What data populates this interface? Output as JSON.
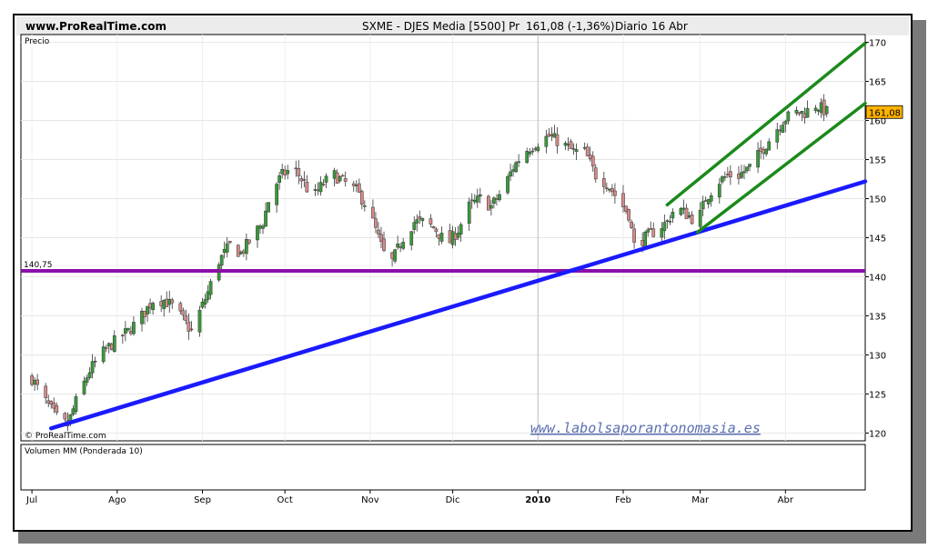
{
  "header": {
    "site": "www.ProRealTime.com",
    "title": "SXME - DJES Media [5500] Pr",
    "price_change": "161,08 (-1,36%)",
    "period": "Diario",
    "date": "16 Abr"
  },
  "panels": {
    "price_label": "Precio",
    "volume_label": "Volumen MM (Ponderada 10)",
    "copyright": "© ProRealTime.com",
    "watermark": "www.labolsaporantonomasia.es"
  },
  "colors": {
    "bull": "#3a9a3a",
    "bear": "#d58a8a",
    "support_line": "#1a1aff",
    "horizontal_line": "#8a10a8",
    "channel": "#1a8a1a",
    "last_price_bg": "#ffb200"
  },
  "chart_data": {
    "type": "candlestick",
    "months": [
      "Jul",
      "Ago",
      "Sep",
      "Oct",
      "Nov",
      "Dic",
      "2010",
      "Feb",
      "Mar",
      "Abr"
    ],
    "ylim": [
      119,
      171
    ],
    "yticks": [
      120,
      125,
      130,
      135,
      140,
      145,
      150,
      155,
      160,
      165,
      170
    ],
    "last_price": "161,08",
    "horizontal_level": {
      "value": 140.75,
      "label": "140,75"
    },
    "trend_lines": [
      {
        "name": "support",
        "from": {
          "x": "2009-07-08",
          "y": 120.6
        },
        "to": {
          "x": "2010-04-30",
          "y": 152.2
        }
      },
      {
        "name": "channel-upper",
        "from": {
          "x": "2010-02-17",
          "y": 149.2
        },
        "to": {
          "x": "2010-04-30",
          "y": 169.9
        }
      },
      {
        "name": "channel-lower",
        "from": {
          "x": "2010-02-28",
          "y": 145.7
        },
        "to": {
          "x": "2010-04-30",
          "y": 162.2
        }
      }
    ],
    "closes": [
      [
        "2009-07-01",
        127
      ],
      [
        "2009-07-06",
        124
      ],
      [
        "2009-07-10",
        122
      ],
      [
        "2009-07-14",
        121
      ],
      [
        "2009-07-17",
        124
      ],
      [
        "2009-07-22",
        128
      ],
      [
        "2009-07-26",
        130
      ],
      [
        "2009-08-01",
        132
      ],
      [
        "2009-08-05",
        133
      ],
      [
        "2009-08-10",
        135
      ],
      [
        "2009-08-14",
        137
      ],
      [
        "2009-08-18",
        137
      ],
      [
        "2009-08-22",
        136
      ],
      [
        "2009-08-26",
        134
      ],
      [
        "2009-08-28",
        133
      ],
      [
        "2009-09-03",
        138
      ],
      [
        "2009-09-07",
        142
      ],
      [
        "2009-09-11",
        144
      ],
      [
        "2009-09-15",
        143
      ],
      [
        "2009-09-19",
        145
      ],
      [
        "2009-09-23",
        147
      ],
      [
        "2009-09-26",
        151
      ],
      [
        "2009-09-30",
        153
      ],
      [
        "2009-10-04",
        154
      ],
      [
        "2009-10-08",
        152
      ],
      [
        "2009-10-11",
        150
      ],
      [
        "2009-10-15",
        152
      ],
      [
        "2009-10-19",
        153
      ],
      [
        "2009-10-23",
        152
      ],
      [
        "2009-10-27",
        151
      ],
      [
        "2009-10-31",
        149
      ],
      [
        "2009-11-03",
        146
      ],
      [
        "2009-11-06",
        143
      ],
      [
        "2009-11-09",
        142
      ],
      [
        "2009-11-13",
        145
      ],
      [
        "2009-11-17",
        147
      ],
      [
        "2009-11-21",
        147
      ],
      [
        "2009-11-25",
        146
      ],
      [
        "2009-11-29",
        144
      ],
      [
        "2009-12-03",
        146
      ],
      [
        "2009-12-07",
        149
      ],
      [
        "2009-12-11",
        150
      ],
      [
        "2009-12-15",
        149
      ],
      [
        "2009-12-19",
        151
      ],
      [
        "2009-12-23",
        154
      ],
      [
        "2009-12-27",
        156
      ],
      [
        "2009-12-31",
        157
      ],
      [
        "2010-01-05",
        158
      ],
      [
        "2010-01-10",
        157
      ],
      [
        "2010-01-14",
        156
      ],
      [
        "2010-01-18",
        156
      ],
      [
        "2010-01-22",
        153
      ],
      [
        "2010-01-26",
        152
      ],
      [
        "2010-01-30",
        150
      ],
      [
        "2010-02-03",
        148
      ],
      [
        "2010-02-05",
        144
      ],
      [
        "2010-02-09",
        145
      ],
      [
        "2010-02-13",
        146
      ],
      [
        "2010-02-17",
        147
      ],
      [
        "2010-02-20",
        149
      ],
      [
        "2010-02-24",
        148
      ],
      [
        "2010-02-28",
        147
      ],
      [
        "2010-03-03",
        150
      ],
      [
        "2010-03-07",
        152
      ],
      [
        "2010-03-11",
        153
      ],
      [
        "2010-03-15",
        153
      ],
      [
        "2010-03-19",
        154
      ],
      [
        "2010-03-23",
        156
      ],
      [
        "2010-03-27",
        158
      ],
      [
        "2010-03-31",
        160
      ],
      [
        "2010-04-04",
        161
      ],
      [
        "2010-04-08",
        161
      ],
      [
        "2010-04-12",
        162
      ],
      [
        "2010-04-16",
        161.08
      ]
    ]
  }
}
